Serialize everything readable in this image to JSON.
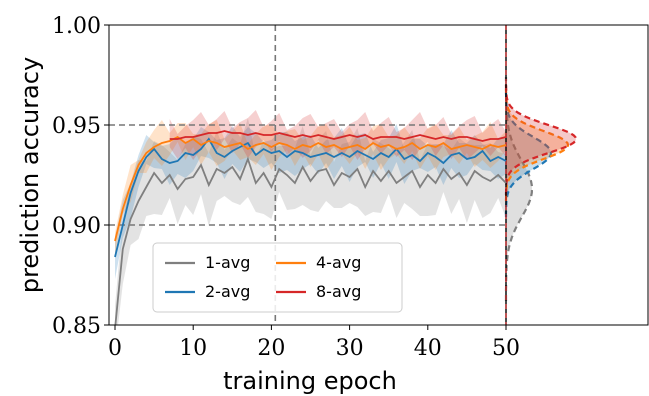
{
  "chart_data": {
    "type": "line",
    "xlabel": "training epoch",
    "ylabel": "prediction accuracy",
    "xlim": [
      0,
      55
    ],
    "ylim": [
      0.85,
      1.0
    ],
    "xticks": [
      "0",
      "10",
      "20",
      "30",
      "40",
      "50"
    ],
    "yticks": [
      "0.85",
      "0.90",
      "0.95",
      "1.00"
    ],
    "grid": false,
    "legend_placement": "lower-left",
    "reference_lines": {
      "vertical_dashed_x": 20.5,
      "horizontal_dashed_y": [
        0.9,
        0.95
      ],
      "end_of_training_x": 50
    },
    "series": [
      {
        "name": "1-avg",
        "color": "#7f7f7f",
        "x": [
          0,
          1,
          2,
          3,
          4,
          5,
          6,
          7,
          8,
          9,
          10,
          11,
          12,
          13,
          14,
          15,
          16,
          17,
          18,
          19,
          20,
          21,
          22,
          23,
          24,
          25,
          26,
          27,
          28,
          29,
          30,
          31,
          32,
          33,
          34,
          35,
          36,
          37,
          38,
          39,
          40,
          41,
          42,
          43,
          44,
          45,
          46,
          47,
          48,
          49,
          50
        ],
        "y": [
          0.848,
          0.888,
          0.903,
          0.912,
          0.919,
          0.926,
          0.921,
          0.925,
          0.918,
          0.923,
          0.924,
          0.93,
          0.92,
          0.928,
          0.926,
          0.929,
          0.923,
          0.933,
          0.921,
          0.926,
          0.919,
          0.928,
          0.925,
          0.921,
          0.929,
          0.922,
          0.927,
          0.928,
          0.92,
          0.926,
          0.924,
          0.928,
          0.919,
          0.927,
          0.922,
          0.927,
          0.921,
          0.924,
          0.927,
          0.919,
          0.925,
          0.921,
          0.928,
          0.923,
          0.926,
          0.92,
          0.927,
          0.924,
          0.922,
          0.925,
          0.921
        ],
        "band": 0.016,
        "density_peak": 0.918
      },
      {
        "name": "2-avg",
        "color": "#1f77b4",
        "x": [
          0,
          1,
          2,
          3,
          4,
          5,
          6,
          7,
          8,
          9,
          10,
          11,
          12,
          13,
          14,
          15,
          16,
          17,
          18,
          19,
          20,
          21,
          22,
          23,
          24,
          25,
          26,
          27,
          28,
          29,
          30,
          31,
          32,
          33,
          34,
          35,
          36,
          37,
          38,
          39,
          40,
          41,
          42,
          43,
          44,
          45,
          46,
          47,
          48,
          49,
          50
        ],
        "y": [
          0.884,
          0.9,
          0.916,
          0.927,
          0.934,
          0.938,
          0.933,
          0.931,
          0.932,
          0.936,
          0.935,
          0.938,
          0.943,
          0.936,
          0.934,
          0.937,
          0.939,
          0.941,
          0.935,
          0.938,
          0.936,
          0.937,
          0.934,
          0.937,
          0.936,
          0.934,
          0.935,
          0.936,
          0.934,
          0.936,
          0.934,
          0.937,
          0.935,
          0.933,
          0.936,
          0.934,
          0.938,
          0.933,
          0.935,
          0.932,
          0.936,
          0.934,
          0.931,
          0.935,
          0.936,
          0.933,
          0.934,
          0.937,
          0.932,
          0.934,
          0.932
        ],
        "band": 0.008,
        "density_peak": 0.936
      },
      {
        "name": "4-avg",
        "color": "#ff7f0e",
        "x": [
          0,
          1,
          2,
          3,
          4,
          5,
          6,
          7,
          8,
          9,
          10,
          11,
          12,
          13,
          14,
          15,
          16,
          17,
          18,
          19,
          20,
          21,
          22,
          23,
          24,
          25,
          26,
          27,
          28,
          29,
          30,
          31,
          32,
          33,
          34,
          35,
          36,
          37,
          38,
          39,
          40,
          41,
          42,
          43,
          44,
          45,
          46,
          47,
          48,
          49,
          50
        ],
        "y": [
          0.892,
          0.908,
          0.92,
          0.93,
          0.936,
          0.939,
          0.941,
          0.942,
          0.944,
          0.941,
          0.943,
          0.94,
          0.942,
          0.941,
          0.939,
          0.94,
          0.941,
          0.938,
          0.94,
          0.941,
          0.939,
          0.941,
          0.94,
          0.938,
          0.94,
          0.939,
          0.941,
          0.939,
          0.94,
          0.938,
          0.939,
          0.94,
          0.938,
          0.941,
          0.939,
          0.94,
          0.938,
          0.939,
          0.941,
          0.938,
          0.94,
          0.939,
          0.941,
          0.938,
          0.939,
          0.94,
          0.939,
          0.938,
          0.94,
          0.939,
          0.94
        ],
        "band": 0.007,
        "density_peak": 0.94
      },
      {
        "name": "8-avg",
        "color": "#d62728",
        "x": [
          7,
          8,
          9,
          10,
          11,
          12,
          13,
          14,
          15,
          16,
          17,
          18,
          19,
          20,
          21,
          22,
          23,
          24,
          25,
          26,
          27,
          28,
          29,
          30,
          31,
          32,
          33,
          34,
          35,
          36,
          37,
          38,
          39,
          40,
          41,
          42,
          43,
          44,
          45,
          46,
          47,
          48,
          49,
          50
        ],
        "y": [
          0.943,
          0.943,
          0.944,
          0.944,
          0.945,
          0.946,
          0.946,
          0.947,
          0.946,
          0.946,
          0.945,
          0.946,
          0.945,
          0.945,
          0.946,
          0.945,
          0.944,
          0.945,
          0.944,
          0.945,
          0.944,
          0.943,
          0.944,
          0.945,
          0.944,
          0.945,
          0.943,
          0.944,
          0.944,
          0.944,
          0.943,
          0.944,
          0.945,
          0.944,
          0.943,
          0.944,
          0.943,
          0.944,
          0.944,
          0.943,
          0.942,
          0.943,
          0.943,
          0.944
        ],
        "band": 0.007,
        "density_peak": 0.943
      }
    ]
  }
}
